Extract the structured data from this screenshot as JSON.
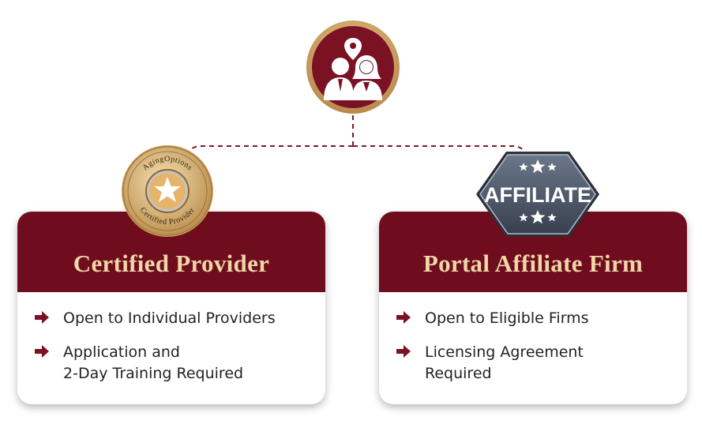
{
  "hub": {
    "icon": "people-with-location-pin-icon"
  },
  "cards": [
    {
      "title": "Certified Provider",
      "badge": {
        "line_top": "AgingOptions",
        "line_bottom": "Certified Provider",
        "icon": "star-icon"
      },
      "items": [
        {
          "text": "Open to Individual Providers"
        },
        {
          "text": "Application and\n2-Day Training Required"
        }
      ]
    },
    {
      "title": "Portal Affiliate Firm",
      "badge": {
        "label": "AFFILIATE",
        "icon": "stars-icon"
      },
      "items": [
        {
          "text": "Open to Eligible Firms"
        },
        {
          "text": "Licensing Agreement\nRequired"
        }
      ]
    }
  ],
  "colors": {
    "maroon": "#6f0d1e",
    "gold": "#c9a16a",
    "title_text": "#f0d6a8",
    "affiliate_steel": "#4e5a6e"
  }
}
